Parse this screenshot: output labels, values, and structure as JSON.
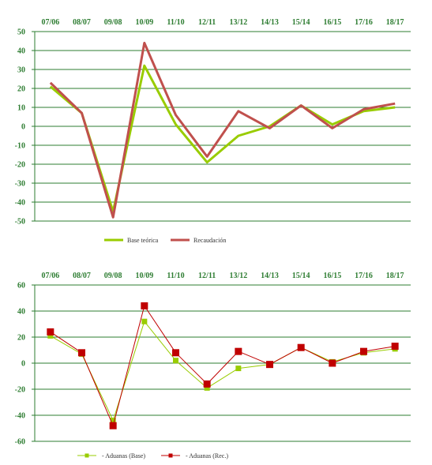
{
  "chart_data": [
    {
      "type": "line",
      "categories": [
        "07/06",
        "08/07",
        "09/08",
        "10/09",
        "11/10",
        "12/11",
        "13/12",
        "14/13",
        "15/14",
        "16/15",
        "17/16",
        "18/17"
      ],
      "ylim": [
        -50,
        50
      ],
      "yticks": [
        50,
        40,
        30,
        20,
        10,
        0,
        -10,
        -20,
        -30,
        -40,
        -50
      ],
      "grid": true,
      "legend_position": "bottom",
      "series": [
        {
          "name": "Base teórica",
          "color": "#99cc00",
          "values": [
            21,
            7,
            -45,
            32,
            1,
            -19,
            -5,
            0,
            11,
            1,
            8,
            10
          ]
        },
        {
          "name": "Recaudación",
          "color": "#c0504d",
          "values": [
            23,
            7,
            -48,
            44,
            6,
            -16,
            8,
            -1,
            11,
            -1,
            9,
            12
          ]
        }
      ]
    },
    {
      "type": "line",
      "categories": [
        "07/06",
        "08/07",
        "09/08",
        "10/09",
        "11/10",
        "12/11",
        "13/12",
        "14/13",
        "15/14",
        "16/15",
        "17/16",
        "18/17"
      ],
      "ylim": [
        -60,
        60
      ],
      "yticks": [
        60,
        40,
        20,
        0,
        -20,
        -40,
        -60
      ],
      "grid": true,
      "legend_position": "bottom",
      "series": [
        {
          "name": " - Aduanas (Base)",
          "color": "#99cc00",
          "marker": "square",
          "values": [
            21,
            7,
            -44,
            32,
            2,
            -19,
            -4,
            -1,
            12,
            1,
            8,
            11
          ]
        },
        {
          "name": " - Aduanas (Rec.)",
          "color": "#c00000",
          "marker": "square",
          "values": [
            24,
            8,
            -48,
            44,
            8,
            -16,
            9,
            -1,
            12,
            0,
            9,
            13
          ]
        }
      ]
    }
  ]
}
